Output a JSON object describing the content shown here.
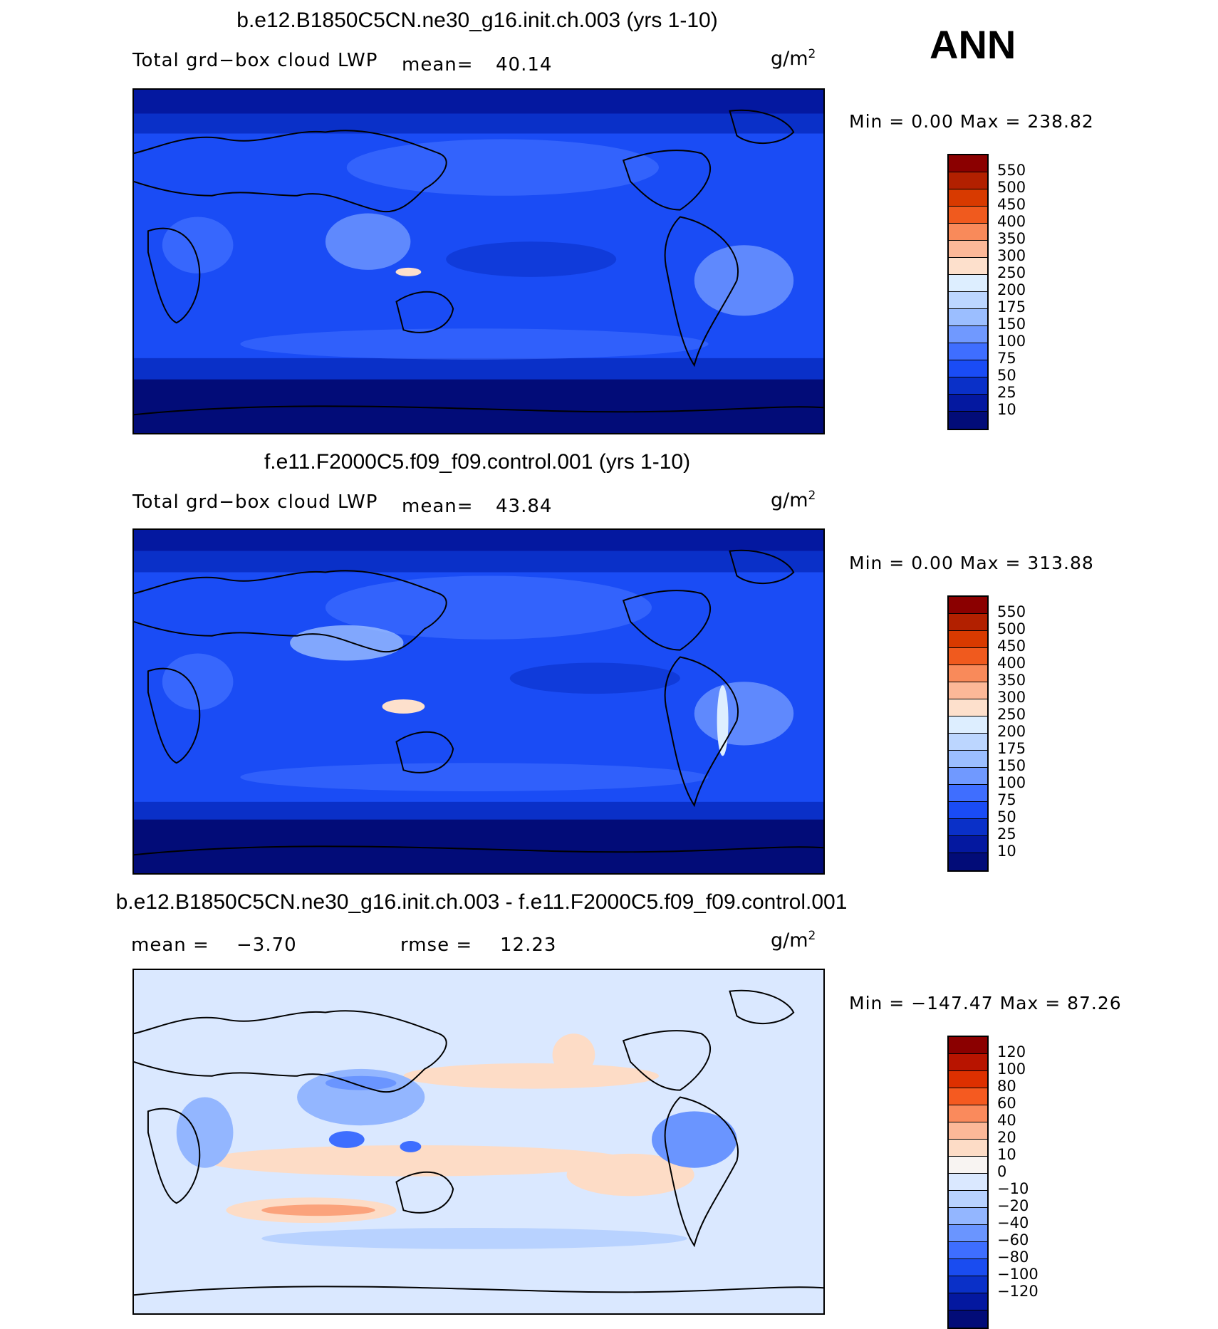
{
  "season": "ANN",
  "panels": [
    {
      "title": "b.e12.B1850C5CN.ne30_g16.init.ch.003 (yrs 1-10)",
      "variable": "Total grd−box cloud LWP",
      "mean_label": "mean=",
      "mean_value": "40.14",
      "units_base": "g/m",
      "units_exp": "2",
      "minmax": "Min =    0.00 Max = 238.82",
      "kind": "absolute",
      "colorbar": {
        "colors": [
          "#8B0000",
          "#B22000",
          "#D83A00",
          "#F05A1E",
          "#F98A5A",
          "#FCB898",
          "#FDE0CC",
          "#DDEEFF",
          "#BCD6FF",
          "#9BBEFF",
          "#7099FF",
          "#3F6EFF",
          "#1A4CF5",
          "#0A30C8",
          "#0418A0",
          "#020C78"
        ],
        "labels": [
          "550",
          "500",
          "450",
          "400",
          "350",
          "300",
          "250",
          "200",
          "175",
          "150",
          "100",
          "75",
          "50",
          "25",
          "10"
        ]
      }
    },
    {
      "title": "f.e11.F2000C5.f09_f09.control.001 (yrs 1-10)",
      "variable": "Total grd−box cloud LWP",
      "mean_label": "mean=",
      "mean_value": "43.84",
      "units_base": "g/m",
      "units_exp": "2",
      "minmax": "Min =    0.00 Max = 313.88",
      "kind": "absolute",
      "colorbar": {
        "colors": [
          "#8B0000",
          "#B22000",
          "#D83A00",
          "#F05A1E",
          "#F98A5A",
          "#FCB898",
          "#FDE0CC",
          "#DDEEFF",
          "#BCD6FF",
          "#9BBEFF",
          "#7099FF",
          "#3F6EFF",
          "#1A4CF5",
          "#0A30C8",
          "#0418A0",
          "#020C78"
        ],
        "labels": [
          "550",
          "500",
          "450",
          "400",
          "350",
          "300",
          "250",
          "200",
          "175",
          "150",
          "100",
          "75",
          "50",
          "25",
          "10"
        ]
      }
    },
    {
      "title": "b.e12.B1850C5CN.ne30_g16.init.ch.003 - f.e11.F2000C5.f09_f09.control.001",
      "mean_label": "mean =",
      "mean_value": "−3.70",
      "rmse_label": "rmse =",
      "rmse_value": "12.23",
      "units_base": "g/m",
      "units_exp": "2",
      "minmax": "Min = −147.47 Max =  87.26",
      "kind": "difference",
      "colorbar": {
        "colors": [
          "#8B0000",
          "#B81400",
          "#DD3000",
          "#F55A20",
          "#FA8A5C",
          "#FCB898",
          "#FDDCC6",
          "#F8F4F2",
          "#DAE8FF",
          "#B8D2FF",
          "#93B6FF",
          "#6A95FF",
          "#3E6EFF",
          "#1A4CF0",
          "#0A30C8",
          "#0418A0",
          "#020C78"
        ],
        "labels": [
          "120",
          "100",
          "80",
          "60",
          "40",
          "20",
          "10",
          "0",
          "−10",
          "−20",
          "−40",
          "−60",
          "−80",
          "−100",
          "−120"
        ]
      }
    }
  ]
}
